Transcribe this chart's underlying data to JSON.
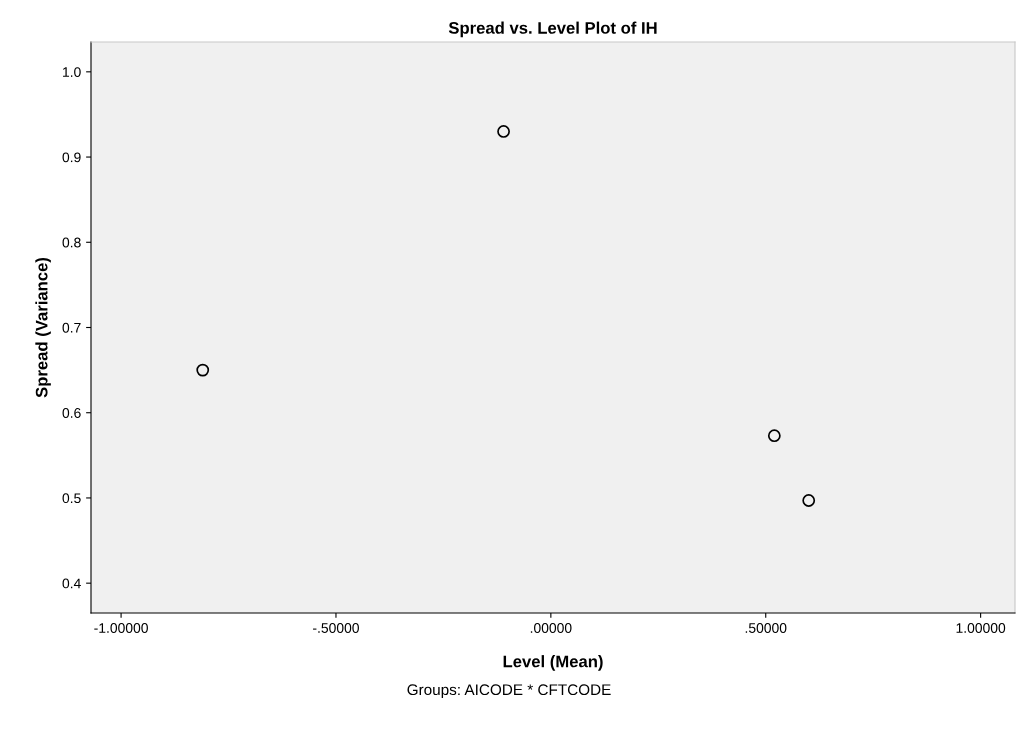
{
  "chart_data": {
    "type": "scatter",
    "title": "Spread vs. Level Plot of IH",
    "xlabel": "Level (Mean)",
    "ylabel": "Spread (Variance)",
    "annotations": [
      "Groups: AICODE * CFTCODE"
    ],
    "x": [
      -0.81,
      -0.11,
      0.52,
      0.6
    ],
    "values": [
      0.65,
      0.93,
      0.573,
      0.497
    ],
    "color": "#000000",
    "marker": "circle",
    "grid": false,
    "legend": false,
    "xlim": [
      -1.07,
      1.08
    ],
    "ylim": [
      0.365,
      1.035
    ],
    "xticks": [
      {
        "value": -1,
        "label": "-1.00000"
      },
      {
        "value": -0.5,
        "label": "-.50000"
      },
      {
        "value": 0,
        "label": ".00000"
      },
      {
        "value": 0.5,
        "label": ".50000"
      },
      {
        "value": 1,
        "label": "1.00000"
      }
    ],
    "yticks": [
      {
        "value": 0.4,
        "label": "0.4"
      },
      {
        "value": 0.5,
        "label": "0.5"
      },
      {
        "value": 0.6,
        "label": "0.6"
      },
      {
        "value": 0.7,
        "label": "0.7"
      },
      {
        "value": 0.8,
        "label": "0.8"
      },
      {
        "value": 0.9,
        "label": "0.9"
      },
      {
        "value": 1.0,
        "label": "1.0"
      }
    ]
  }
}
